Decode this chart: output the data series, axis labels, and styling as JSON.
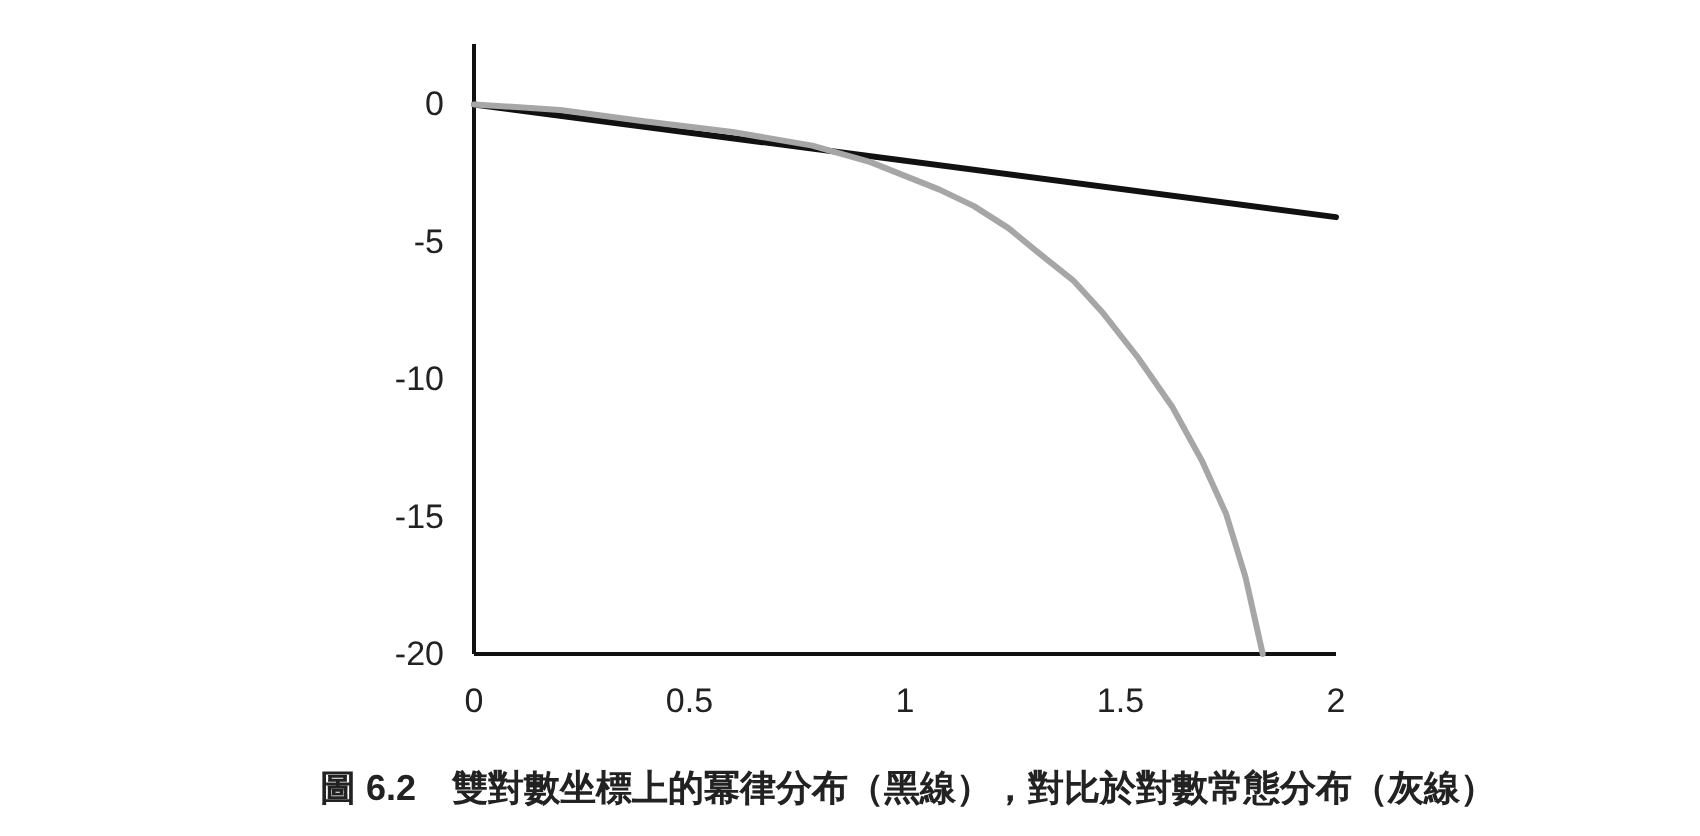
{
  "chart_data": {
    "type": "line",
    "annotations": [
      "圖 6.2　雙對數坐標上的冪律分布（黑線），對比於對數常態分布（灰線）"
    ],
    "xlim": [
      0,
      2
    ],
    "ylim": [
      -20,
      2.2
    ],
    "xticks": [
      0,
      0.5,
      1,
      1.5,
      2
    ],
    "yticks": [
      -20,
      -15,
      -10,
      -5,
      0
    ],
    "grid": false,
    "marker": "none",
    "line_style": "solid",
    "series": [
      {
        "color": "#111111",
        "x": [
          0,
          2
        ],
        "values": [
          0,
          -4.1
        ]
      },
      {
        "color": "#a6a6a6",
        "x": [
          0,
          0.2,
          0.39,
          0.6,
          0.785,
          0.92,
          1.0,
          1.08,
          1.16,
          1.24,
          1.31,
          1.39,
          1.46,
          1.54,
          1.62,
          1.69,
          1.745,
          1.79,
          1.83
        ],
        "values": [
          0,
          -0.2,
          -0.6,
          -1.0,
          -1.5,
          -2.1,
          -2.6,
          -3.1,
          -3.7,
          -4.5,
          -5.4,
          -6.4,
          -7.6,
          -9.2,
          -11.0,
          -13.0,
          -14.9,
          -17.2,
          -20
        ]
      }
    ]
  }
}
